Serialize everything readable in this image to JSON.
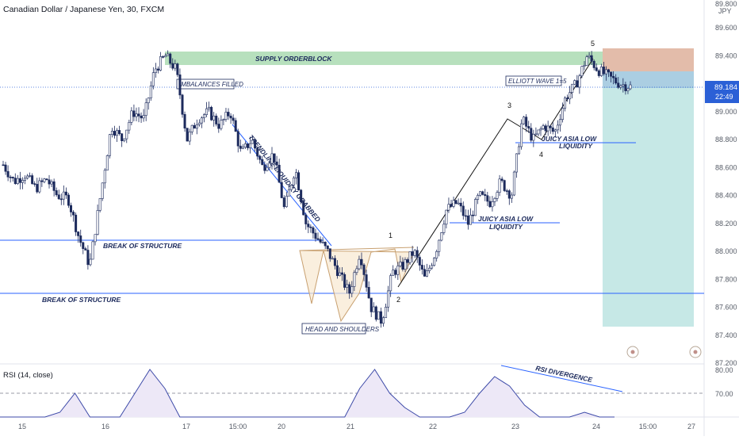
{
  "header": {
    "title": "Canadian Dollar / Japanese Yen, 30, FXCM"
  },
  "colors": {
    "candle_up": "#1c2a5c",
    "candle_down": "#1c2a5c",
    "supply_zone": "#9fd5a7",
    "target_zone": "#a8dcd8",
    "stop_zone": "#d9a58e",
    "entry_zone": "#9cc6dd",
    "price_tag": "#2b60d6",
    "rsi_line": "#3d4aa8",
    "rsi_fill": "#ede8f7",
    "annotation": "#1c2a5c",
    "line": "#2962ff"
  },
  "price_axis": {
    "unit": "JPY",
    "top_cut_label": "89.800",
    "labels": [
      "89.600",
      "89.400",
      "89.200",
      "89.000",
      "88.800",
      "88.600",
      "88.400",
      "88.200",
      "88.000",
      "87.800",
      "87.600",
      "87.400",
      "87.200"
    ],
    "current_price": "89.184",
    "countdown": "22:49"
  },
  "time_axis": {
    "labels": [
      "15",
      "16",
      "17",
      "15:00",
      "20",
      "21",
      "22",
      "23",
      "24",
      "15:00",
      "27"
    ]
  },
  "annotations": {
    "supply": "SUPPLY ORDERBLOCK",
    "imbalances": "IMBALANCES FILLED",
    "trendline": "TRENDLINE LIQUIDITY GRABBED",
    "bos1": "BREAK OF STRUCTURE",
    "bos2": "BREAK OF STRUCTURE",
    "head_shoulders": "HEAD AND SHOULDERS",
    "juicy1_line1": "JUICY ASIA LOW",
    "juicy1_line2": "LIQUIDITY",
    "juicy2_line1": "JUICY ASIA LOW",
    "juicy2_line2": "LIQUIDITY",
    "elliott": "ELLIOTT WAVE 1=5",
    "wave1": "1",
    "wave2": "2",
    "wave3": "3",
    "wave4": "4",
    "wave5": "5",
    "rsi_divergence": "RSI DIVERGENCE"
  },
  "rsi": {
    "title": "RSI (14, close)",
    "labels": [
      "80.00",
      "70.00"
    ]
  },
  "chart_data": {
    "type": "candlestick",
    "title": "Canadian Dollar / Japanese Yen, 30, FXCM",
    "ylim": [
      87.2,
      89.8
    ],
    "price_path": [
      [
        "15",
        88.62
      ],
      [
        "15",
        88.5
      ],
      [
        "15",
        88.55
      ],
      [
        "15",
        88.45
      ],
      [
        "15",
        88.52
      ],
      [
        "15",
        88.4
      ],
      [
        "16",
        88.38
      ],
      [
        "16",
        88.1
      ],
      [
        "16",
        87.9
      ],
      [
        "16",
        88.4
      ],
      [
        "16",
        88.9
      ],
      [
        "16",
        88.8
      ],
      [
        "16",
        89.0
      ],
      [
        "16",
        88.95
      ],
      [
        "16",
        89.3
      ],
      [
        "16",
        89.4
      ],
      [
        "17",
        89.3
      ],
      [
        "17",
        88.8
      ],
      [
        "17",
        88.95
      ],
      [
        "17",
        89.0
      ],
      [
        "17",
        88.9
      ],
      [
        "17",
        89.0
      ],
      [
        "17",
        88.7
      ],
      [
        "17",
        88.8
      ],
      [
        "17",
        88.6
      ],
      [
        "15:00",
        88.7
      ],
      [
        "15:00",
        88.3
      ],
      [
        "15:00",
        88.6
      ],
      [
        "15:00",
        88.2
      ],
      [
        "20",
        88.1
      ],
      [
        "20",
        88.0
      ],
      [
        "20",
        87.85
      ],
      [
        "20",
        87.7
      ],
      [
        "20",
        88.0
      ],
      [
        "21",
        87.6
      ],
      [
        "21",
        87.5
      ],
      [
        "21",
        87.85
      ],
      [
        "21",
        87.9
      ],
      [
        "21",
        88.0
      ],
      [
        "21",
        87.8
      ],
      [
        "22",
        88.0
      ],
      [
        "22",
        88.3
      ],
      [
        "22",
        88.35
      ],
      [
        "22",
        88.2
      ],
      [
        "22",
        88.4
      ],
      [
        "22",
        88.35
      ],
      [
        "22",
        88.5
      ],
      [
        "23",
        88.4
      ],
      [
        "23",
        88.95
      ],
      [
        "23",
        88.8
      ],
      [
        "23",
        88.9
      ],
      [
        "23",
        88.85
      ],
      [
        "23",
        89.1
      ],
      [
        "23",
        89.2
      ],
      [
        "24",
        89.4
      ],
      [
        "24",
        89.3
      ],
      [
        "24",
        89.25
      ],
      [
        "24",
        89.2
      ],
      [
        "24",
        89.18
      ]
    ],
    "levels": {
      "supply_orderblock": [
        89.34,
        89.42
      ],
      "break_of_structure_1": 88.08,
      "break_of_structure_2": 87.7,
      "juicy_asia_low_1": 88.78,
      "juicy_asia_low_2": 88.2,
      "current_price": 89.184
    },
    "rsi_series": [
      45,
      55,
      60,
      50,
      62,
      70,
      58,
      48,
      52,
      70,
      80,
      72,
      60,
      55,
      50,
      60,
      58,
      45,
      40,
      50,
      55,
      48,
      42,
      60,
      72,
      80,
      70,
      64,
      58,
      55,
      50,
      62,
      70,
      77,
      73,
      65,
      58,
      52,
      48,
      62,
      58,
      50
    ]
  }
}
